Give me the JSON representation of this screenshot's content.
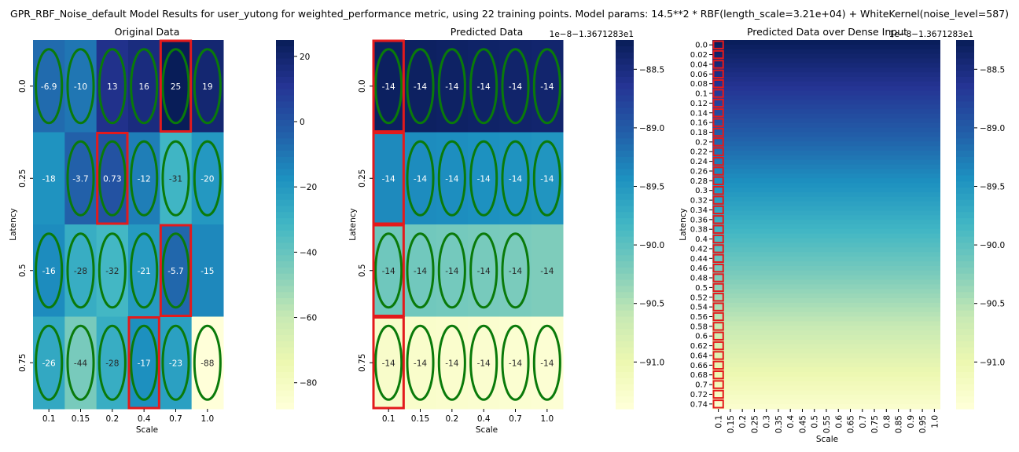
{
  "figure": {
    "title": "GPR_RBF_Noise_default Model Results for user_yutong for weighted_performance metric, using 22 training points. Model params: 14.5**2 * RBF(length_scale=3.21e+04) + WhiteKernel(noise_level=587)"
  },
  "colors": {
    "cmap": [
      "#ffffd9",
      "#edf8b1",
      "#c7e9b4",
      "#7fcdbb",
      "#41b6c4",
      "#1d91c0",
      "#225ea8",
      "#253494",
      "#081d58"
    ],
    "highlight": "#e31a1c",
    "ellipse": "#0a7a0a"
  },
  "chart_data": [
    {
      "type": "heatmap",
      "title": "Original Data",
      "xlabel": "Scale",
      "ylabel": "Latency",
      "x_ticks": [
        "0.1",
        "0.15",
        "0.2",
        "0.4",
        "0.7",
        "1.0"
      ],
      "y_ticks": [
        "0.0",
        "0.25",
        "0.5",
        "0.75"
      ],
      "values": [
        [
          -6.9,
          -10,
          13,
          16,
          25,
          19
        ],
        [
          -18,
          -3.7,
          0.73,
          -12,
          -31,
          -20
        ],
        [
          -16,
          -28,
          -32,
          -21,
          -5.7,
          -15
        ],
        [
          -26,
          -44,
          -28,
          -17,
          -23,
          -88
        ]
      ],
      "labels": [
        [
          "-6.9",
          "-10",
          "13",
          "16",
          "25",
          "19"
        ],
        [
          "-18",
          "-3.7",
          "0.73",
          "-12",
          "-31",
          "-20"
        ],
        [
          "-16",
          "-28",
          "-32",
          "-21",
          "-5.7",
          "-15"
        ],
        [
          "-26",
          "-44",
          "-28",
          "-17",
          "-23",
          "-88"
        ]
      ],
      "vmin": -88,
      "vmax": 25,
      "colorbar_ticks": [
        20,
        0,
        -20,
        -40,
        -60,
        -80
      ],
      "colorbar_labels": [
        "20",
        "0",
        "−20",
        "−40",
        "−60",
        "−80"
      ],
      "colorbar_offset": "",
      "ellipses": [
        [
          0,
          0
        ],
        [
          0,
          1
        ],
        [
          0,
          2
        ],
        [
          0,
          3
        ],
        [
          0,
          4
        ],
        [
          0,
          5
        ],
        [
          1,
          1
        ],
        [
          1,
          2
        ],
        [
          1,
          3
        ],
        [
          1,
          4
        ],
        [
          1,
          5
        ],
        [
          2,
          0
        ],
        [
          2,
          1
        ],
        [
          2,
          2
        ],
        [
          2,
          3
        ],
        [
          2,
          4
        ],
        [
          3,
          0
        ],
        [
          3,
          1
        ],
        [
          3,
          2
        ],
        [
          3,
          3
        ],
        [
          3,
          4
        ],
        [
          3,
          5
        ]
      ],
      "highlights": [
        [
          0,
          4
        ],
        [
          1,
          2
        ],
        [
          2,
          4
        ],
        [
          3,
          3
        ]
      ]
    },
    {
      "type": "heatmap",
      "title": "Predicted Data",
      "xlabel": "Scale",
      "ylabel": "Latency",
      "x_ticks": [
        "0.1",
        "0.15",
        "0.2",
        "0.4",
        "0.7",
        "1.0"
      ],
      "y_ticks": [
        "0.0",
        "0.25",
        "0.5",
        "0.75"
      ],
      "row_values": [
        -88.3,
        -89.38,
        -90.12,
        -91.25
      ],
      "col_slope": [
        0.0,
        -0.012,
        -0.03,
        -0.05,
        -0.07,
        -0.09
      ],
      "cell_label": "-14",
      "vmin": -91.4,
      "vmax": -88.25,
      "colorbar_ticks": [
        -88.5,
        -89.0,
        -89.5,
        -90.0,
        -90.5,
        -91.0
      ],
      "colorbar_labels": [
        "−88.5",
        "−89.0",
        "−89.5",
        "−90.0",
        "−90.5",
        "−91.0"
      ],
      "colorbar_offset": "1e−8−1.3671283e1",
      "ellipses": [
        [
          0,
          0
        ],
        [
          0,
          1
        ],
        [
          0,
          2
        ],
        [
          0,
          3
        ],
        [
          0,
          4
        ],
        [
          0,
          5
        ],
        [
          1,
          1
        ],
        [
          1,
          2
        ],
        [
          1,
          3
        ],
        [
          1,
          4
        ],
        [
          1,
          5
        ],
        [
          2,
          0
        ],
        [
          2,
          1
        ],
        [
          2,
          2
        ],
        [
          2,
          3
        ],
        [
          2,
          4
        ],
        [
          3,
          0
        ],
        [
          3,
          1
        ],
        [
          3,
          2
        ],
        [
          3,
          3
        ],
        [
          3,
          4
        ],
        [
          3,
          5
        ]
      ],
      "highlights": [
        [
          0,
          0
        ],
        [
          1,
          0
        ],
        [
          2,
          0
        ],
        [
          3,
          0
        ]
      ]
    },
    {
      "type": "heatmap",
      "title": "Predicted Data over Dense Input",
      "xlabel": "Scale",
      "ylabel": "Latency",
      "x_ticks": [
        "0.1",
        "0.15",
        "0.2",
        "0.25",
        "0.3",
        "0.35",
        "0.4",
        "0.45",
        "0.5",
        "0.55",
        "0.6",
        "0.65",
        "0.7",
        "0.75",
        "0.8",
        "0.85",
        "0.9",
        "0.95",
        "1.0"
      ],
      "y_ticks": [
        "0.0",
        "0.02",
        "0.04",
        "0.06",
        "0.08",
        "0.1",
        "0.12",
        "0.14",
        "0.16",
        "0.18",
        "0.2",
        "0.22",
        "0.24",
        "0.26",
        "0.28",
        "0.3",
        "0.32",
        "0.34",
        "0.36",
        "0.38",
        "0.4",
        "0.42",
        "0.44",
        "0.46",
        "0.48",
        "0.5",
        "0.52",
        "0.54",
        "0.56",
        "0.58",
        "0.6",
        "0.62",
        "0.64",
        "0.66",
        "0.68",
        "0.7",
        "0.72",
        "0.74"
      ],
      "value_top": -88.25,
      "value_bottom": -91.3,
      "vmin": -91.4,
      "vmax": -88.25,
      "colorbar_ticks": [
        -88.5,
        -89.0,
        -89.5,
        -90.0,
        -90.5,
        -91.0
      ],
      "colorbar_labels": [
        "−88.5",
        "−89.0",
        "−89.5",
        "−90.0",
        "−90.5",
        "−91.0"
      ],
      "colorbar_offset": "1e−8−1.3671283e1",
      "highlight_column": 0
    }
  ]
}
